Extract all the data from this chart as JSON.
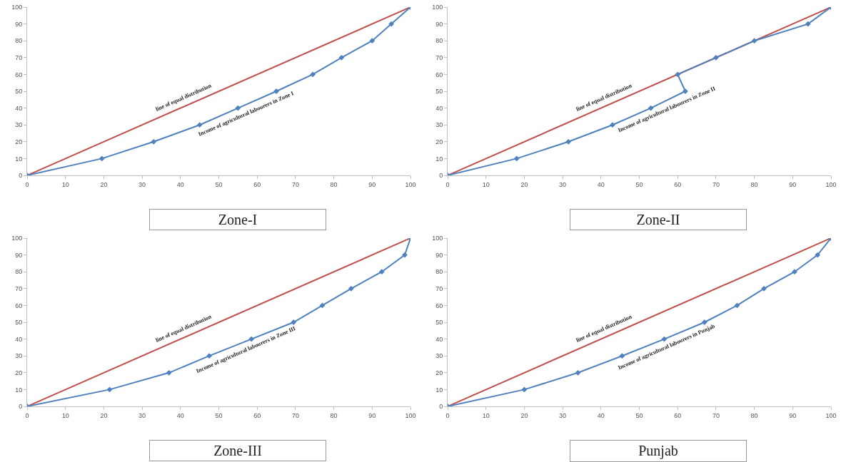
{
  "chart_data": [
    {
      "type": "line",
      "title": "Zone-I",
      "xlim": [
        0,
        100
      ],
      "ylim": [
        0,
        100
      ],
      "xticks": [
        0,
        10,
        20,
        30,
        40,
        50,
        60,
        70,
        80,
        90,
        100
      ],
      "yticks": [
        0,
        10,
        20,
        30,
        40,
        50,
        60,
        70,
        80,
        90,
        100
      ],
      "grid": false,
      "legend": false,
      "series": [
        {
          "name": "line of equal distribution",
          "color": "#c0504d",
          "marker": "none",
          "x": [
            0,
            100
          ],
          "values": [
            0,
            100
          ]
        },
        {
          "name": "Income of agricultural labourers in Zone I",
          "color": "#4f81bd",
          "marker": "diamond",
          "x": [
            0,
            19.5,
            33,
            45,
            55,
            65,
            74.5,
            82,
            90,
            95,
            100
          ],
          "values": [
            0,
            10,
            20,
            30,
            40,
            50,
            60,
            70,
            80,
            90,
            100
          ]
        }
      ]
    },
    {
      "type": "line",
      "title": "Zone-II",
      "xlim": [
        0,
        100
      ],
      "ylim": [
        0,
        100
      ],
      "xticks": [
        0,
        10,
        20,
        30,
        40,
        50,
        60,
        70,
        80,
        90,
        100
      ],
      "yticks": [
        0,
        10,
        20,
        30,
        40,
        50,
        60,
        70,
        80,
        90,
        100
      ],
      "grid": false,
      "legend": false,
      "series": [
        {
          "name": "line of equal distribution",
          "color": "#c0504d",
          "marker": "none",
          "x": [
            0,
            100
          ],
          "values": [
            0,
            100
          ]
        },
        {
          "name": "Income of agricultural labourers in Zone II",
          "color": "#4f81bd",
          "marker": "diamond",
          "x": [
            0,
            18,
            31.5,
            43,
            53,
            62,
            60,
            70,
            80,
            94,
            100
          ],
          "values": [
            0,
            10,
            20,
            30,
            40,
            50,
            60,
            70,
            80,
            90,
            100
          ]
        }
      ]
    },
    {
      "type": "line",
      "title": "Zone-III",
      "xlim": [
        0,
        100
      ],
      "ylim": [
        0,
        100
      ],
      "xticks": [
        0,
        10,
        20,
        30,
        40,
        50,
        60,
        70,
        80,
        90,
        100
      ],
      "yticks": [
        0,
        10,
        20,
        30,
        40,
        50,
        60,
        70,
        80,
        90,
        100
      ],
      "grid": false,
      "legend": false,
      "series": [
        {
          "name": "line of equal distribution",
          "color": "#c0504d",
          "marker": "none",
          "x": [
            0,
            100
          ],
          "values": [
            0,
            100
          ]
        },
        {
          "name": "Income of agricultural labourers in Zone III",
          "color": "#4f81bd",
          "marker": "diamond",
          "x": [
            0,
            21.5,
            37,
            47.5,
            58.5,
            69.5,
            77,
            84.5,
            92.5,
            98.5,
            100
          ],
          "values": [
            0,
            10,
            20,
            30,
            40,
            50,
            60,
            70,
            80,
            90,
            100
          ]
        }
      ]
    },
    {
      "type": "line",
      "title": "Punjab",
      "xlim": [
        0,
        100
      ],
      "ylim": [
        0,
        100
      ],
      "xticks": [
        0,
        10,
        20,
        30,
        40,
        50,
        60,
        70,
        80,
        90,
        100
      ],
      "yticks": [
        0,
        10,
        20,
        30,
        40,
        50,
        60,
        70,
        80,
        90,
        100
      ],
      "grid": false,
      "legend": false,
      "series": [
        {
          "name": "line of equal distribution",
          "color": "#c0504d",
          "marker": "none",
          "x": [
            0,
            100
          ],
          "values": [
            0,
            100
          ]
        },
        {
          "name": "Income of agricultural labourers in Punjab",
          "color": "#4f81bd",
          "marker": "diamond",
          "x": [
            0,
            20,
            34,
            45.5,
            56.5,
            67,
            75.5,
            82.5,
            90.5,
            96.5,
            100
          ],
          "values": [
            0,
            10,
            20,
            30,
            40,
            50,
            60,
            70,
            80,
            90,
            100
          ]
        }
      ]
    }
  ]
}
